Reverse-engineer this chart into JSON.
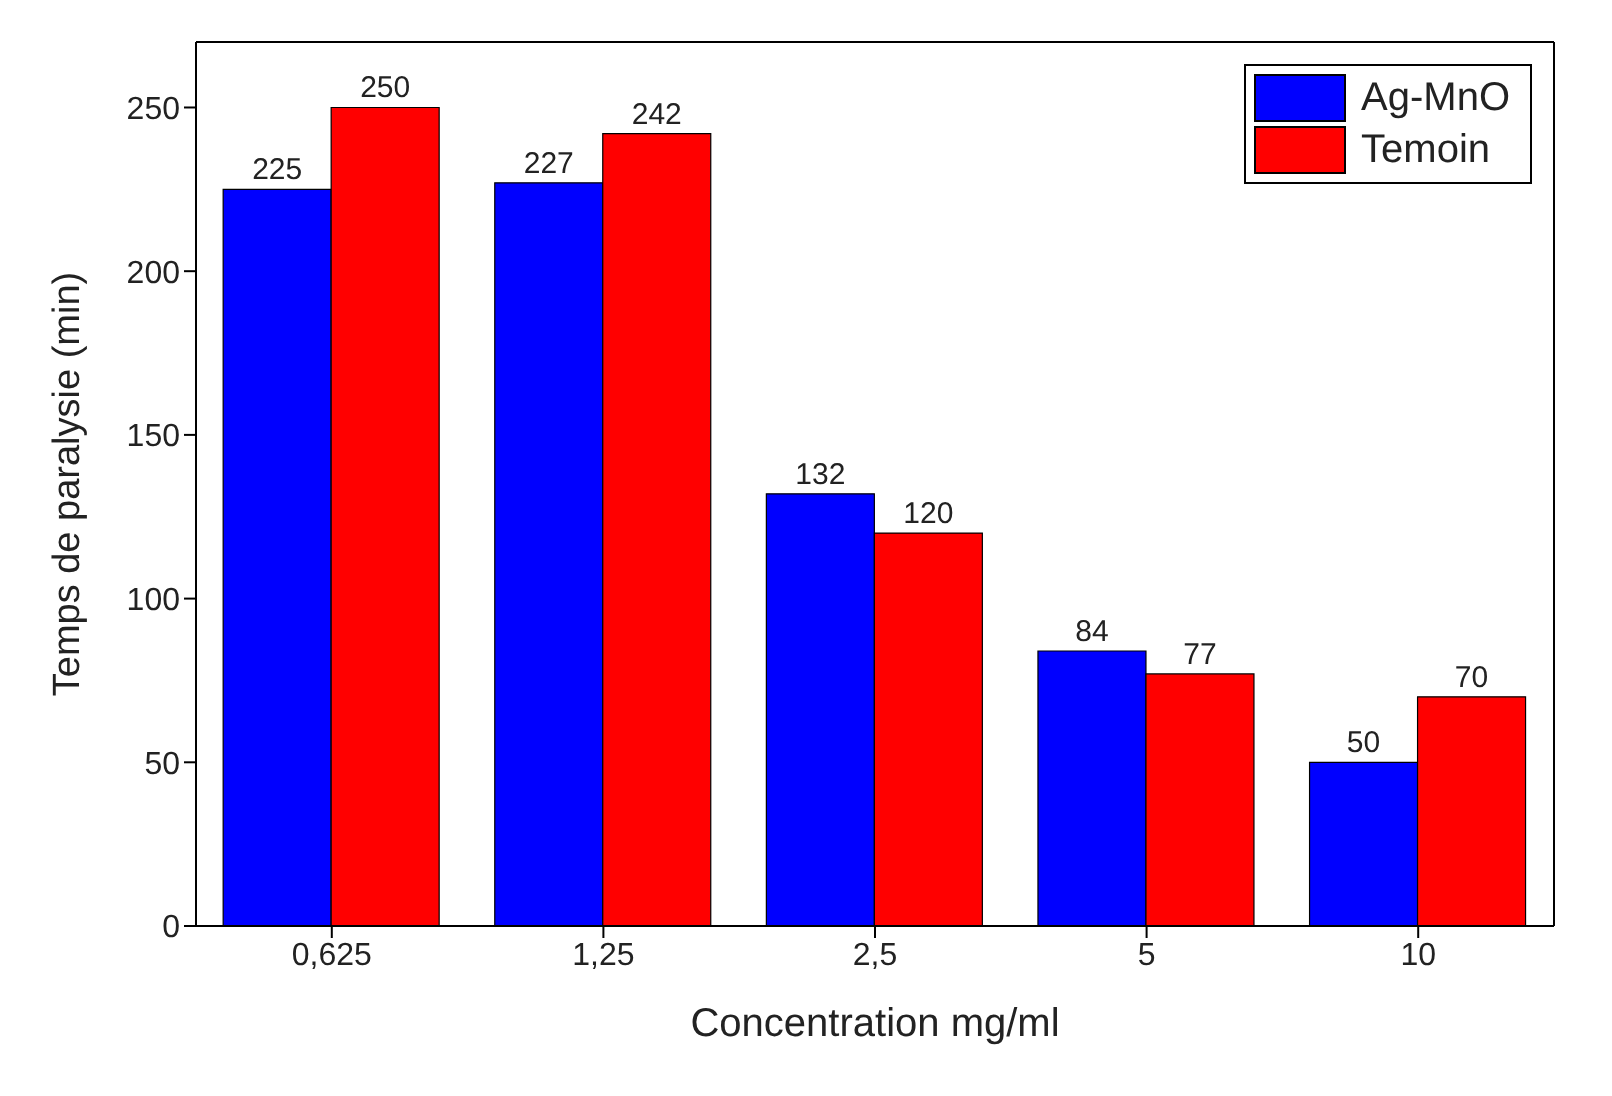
{
  "chart_data": {
    "type": "bar",
    "xlabel": "Concentration mg/ml",
    "ylabel": "Temps de paralysie (min)",
    "categories": [
      "0,625",
      "1,25",
      "2,5",
      "5",
      "10"
    ],
    "series": [
      {
        "name": "Ag-MnO",
        "color": "#0000ff",
        "values": [
          225,
          227,
          132,
          84,
          50
        ]
      },
      {
        "name": "Temoin",
        "color": "#ff0000",
        "values": [
          250,
          242,
          120,
          77,
          70
        ]
      }
    ],
    "ylim": [
      0,
      270
    ],
    "yticks": [
      0,
      50,
      100,
      150,
      200,
      250
    ],
    "data_labels": true,
    "legend": "top right"
  }
}
